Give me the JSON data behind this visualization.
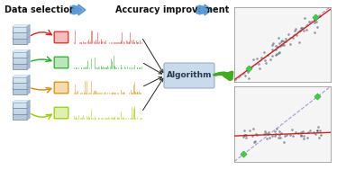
{
  "title_left": "Data selection",
  "title_mid": "Accuracy improvement",
  "bg_color": "#ffffff",
  "arrow_color_blue": "#5b9bd5",
  "spectrum_colors": [
    "#dd2222",
    "#22aa22",
    "#dd8800",
    "#99cc00"
  ],
  "algo_box_color": "#c8d8ec",
  "algo_box_edge": "#99aabb",
  "algo_text": "Algorithm",
  "scatter_dot_color": "#3a4a5a",
  "scatter_line_color": "#cc2222",
  "scatter_diag_color": "#8888cc",
  "scatter_green_color": "#44cc44",
  "green_arrow_color": "#44aa22",
  "db_color": "#aabbcc",
  "db_edge": "#667788"
}
